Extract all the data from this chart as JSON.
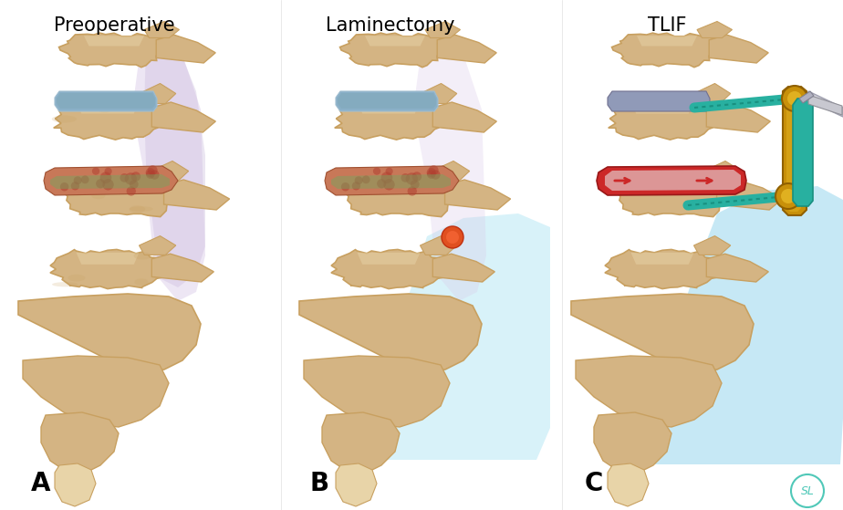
{
  "title_a": "Preoperative",
  "title_b": "Laminectomy",
  "title_c": "TLIF",
  "label_a": "A",
  "label_b": "B",
  "label_c": "C",
  "bg_color": "#ffffff",
  "bone_base": "#d4b483",
  "bone_mid": "#c8a060",
  "bone_light": "#e8d4a8",
  "bone_shadow": "#b08840",
  "bone_highlight": "#f0e0b8",
  "disc_blue": "#8ab0c8",
  "disc_blue2": "#a0bdd0",
  "disc_red_main": "#c83030",
  "disc_red_spot": "#d04040",
  "disc_green": "#60a878",
  "ligament": "#b8a8cc",
  "canal_blue": "#c8e8f0",
  "teal_screw": "#28b0a0",
  "teal_dark": "#189080",
  "gold": "#c8900a",
  "gold_light": "#e0b020",
  "tool_silver": "#c8c8d0",
  "tool_dark": "#909098",
  "orange_mark": "#e05020",
  "title_font": 15,
  "label_font": 20,
  "figsize": [
    9.24,
    5.59
  ],
  "dpi": 100
}
